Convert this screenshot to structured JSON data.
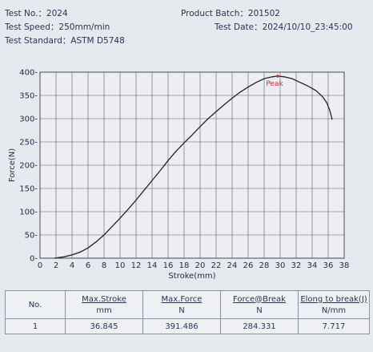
{
  "header": {
    "test_no": "Test No.：2024",
    "test_speed": "Test Speed：250mm/min",
    "test_standard": "Test Standard：ASTM D5748",
    "product_batch": "Product Batch：201502",
    "test_date": "Test Date：2024/10/10_23:45:00"
  },
  "chart_data": {
    "type": "line",
    "xlabel": "Stroke(mm)",
    "ylabel": "Force(N)",
    "xlim": [
      0,
      38
    ],
    "ylim": [
      0,
      400
    ],
    "x_ticks": [
      0,
      2,
      4,
      6,
      8,
      10,
      12,
      14,
      16,
      18,
      20,
      22,
      24,
      26,
      28,
      30,
      32,
      34,
      36,
      38
    ],
    "y_ticks": [
      0,
      50,
      100,
      150,
      200,
      250,
      300,
      350,
      400
    ],
    "grid": true,
    "annotation": {
      "text": "Peak",
      "x": 29.7,
      "y": 391.486
    },
    "series": [
      {
        "color": "#222222",
        "x": [
          1.8,
          3,
          4,
          5,
          6,
          7,
          8,
          9,
          10,
          11,
          12,
          13,
          14,
          15,
          16,
          17,
          18,
          19,
          20,
          21,
          22,
          23,
          24,
          25,
          26,
          27,
          28,
          29,
          29.7,
          30.5,
          31.5,
          32.5,
          33.5,
          34.5,
          35.3,
          35.8,
          36.2,
          36.5
        ],
        "y": [
          0,
          3,
          7,
          13,
          22,
          35,
          50,
          68,
          86,
          105,
          125,
          146,
          167,
          188,
          210,
          230,
          248,
          265,
          283,
          300,
          315,
          330,
          344,
          357,
          368,
          378,
          386,
          390,
          391.5,
          390,
          386,
          378,
          370,
          360,
          347,
          335,
          318,
          298
        ]
      }
    ]
  },
  "table": {
    "headers": [
      {
        "label": "No.",
        "unit": ""
      },
      {
        "label": "Max.Stroke",
        "unit": "mm"
      },
      {
        "label": "Max.Force",
        "unit": "N"
      },
      {
        "label": "Force@Break",
        "unit": "N"
      },
      {
        "label": "Elong to break(J)",
        "unit": "N/mm"
      }
    ],
    "rows": [
      [
        "1",
        "36.845",
        "391.486",
        "284.331",
        "7.717"
      ]
    ]
  }
}
